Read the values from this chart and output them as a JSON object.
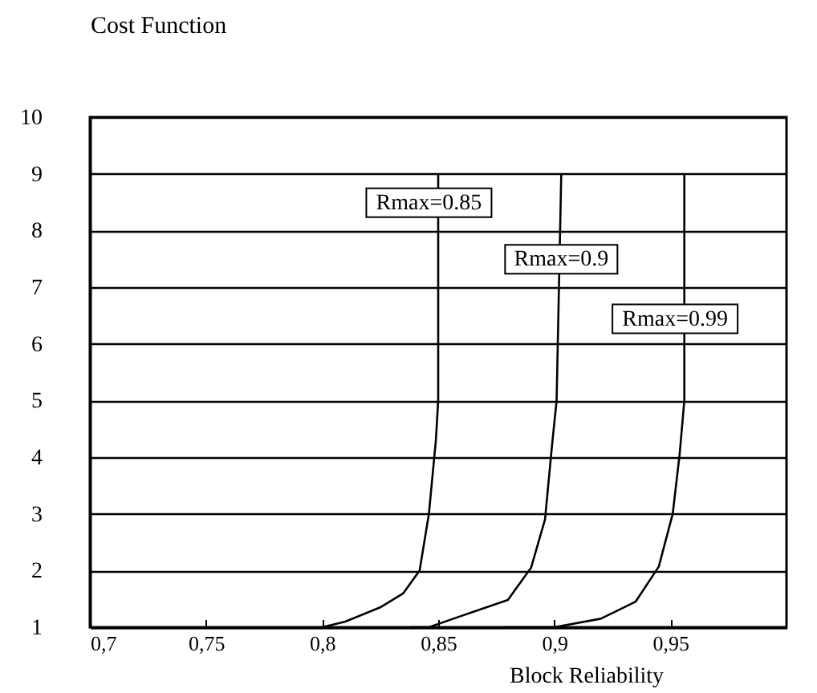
{
  "chart_data": {
    "type": "line",
    "xlabel": "Block Reliability",
    "ylabel": "Cost Function",
    "series": [
      {
        "color": "#000000",
        "x": [
          0.8,
          0.81,
          0.825,
          0.835,
          0.842,
          0.846,
          0.849,
          0.85,
          0.85
        ],
        "values": [
          1,
          1.1,
          1.35,
          1.6,
          2,
          3,
          4.3,
          5,
          9
        ]
      },
      {
        "color": "#000000",
        "x": [
          0.838,
          0.846,
          0.86,
          0.88,
          0.89,
          0.896,
          0.899,
          0.901,
          0.903
        ],
        "values": [
          1,
          1,
          1.2,
          1.48,
          2.05,
          2.9,
          4.2,
          5,
          9
        ]
      },
      {
        "color": "#000000",
        "x": [
          0.878,
          0.9,
          0.92,
          0.935,
          0.945,
          0.951,
          0.954,
          0.956,
          0.956
        ],
        "values": [
          1,
          1,
          1.15,
          1.45,
          2.07,
          3,
          4.06,
          5,
          9
        ]
      }
    ],
    "annotations": [
      {
        "text": "Rmax=0.85",
        "x": 0.846,
        "y": 8.49
      },
      {
        "text": "Rmax=0.9",
        "x": 0.903,
        "y": 7.49
      },
      {
        "text": "Rmax=0.99",
        "x": 0.952,
        "y": 6.44
      }
    ],
    "xlim": [
      0.7,
      1.0
    ],
    "xticks": [
      {
        "value": 0.7,
        "label": "0,7"
      },
      {
        "value": 0.75,
        "label": "0,75"
      },
      {
        "value": 0.8,
        "label": "0,8"
      },
      {
        "value": 0.85,
        "label": "0,85"
      },
      {
        "value": 0.9,
        "label": "0,9"
      },
      {
        "value": 0.95,
        "label": "0,95"
      }
    ],
    "ylim": [
      1,
      10
    ],
    "yticks": [
      1,
      2,
      3,
      4,
      5,
      6,
      7,
      8,
      9,
      10
    ],
    "grid": "y"
  }
}
